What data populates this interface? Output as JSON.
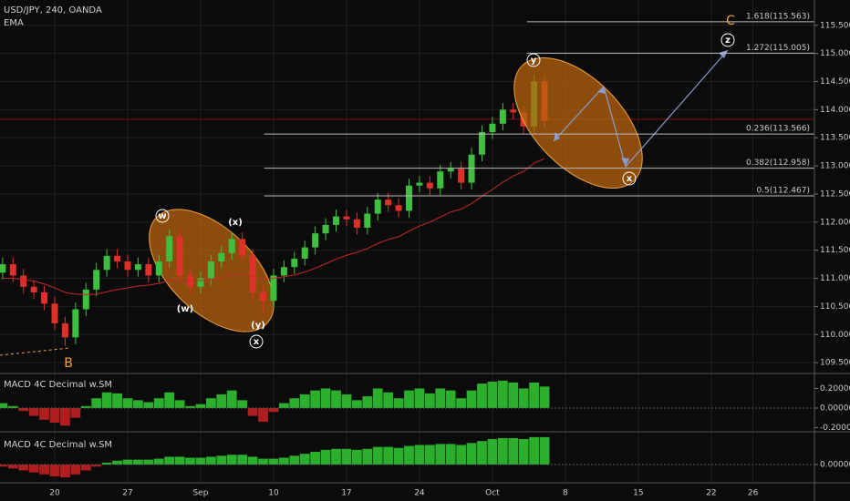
{
  "chart_data": [
    {
      "type": "candlestick",
      "title": "USD/JPY, 240, OANDA",
      "x": [
        -5,
        -4,
        -3,
        -2,
        -1,
        0,
        1,
        2,
        3,
        4,
        5,
        6,
        7,
        8,
        9,
        10,
        11,
        12,
        13,
        14,
        15,
        16,
        17,
        18,
        19,
        20,
        21,
        22,
        23,
        24,
        25,
        26,
        27,
        28,
        29,
        30,
        31,
        32,
        33,
        34,
        35,
        36,
        37,
        38,
        39,
        40,
        41,
        42,
        43,
        44,
        45,
        46,
        47
      ],
      "open": [
        111.1,
        111.25,
        111.05,
        110.85,
        110.75,
        110.55,
        110.2,
        109.95,
        110.45,
        110.8,
        111.15,
        111.4,
        111.3,
        111.15,
        111.25,
        111.05,
        111.3,
        111.75,
        111.05,
        110.85,
        111.0,
        111.3,
        111.45,
        111.7,
        111.4,
        110.75,
        110.6,
        111.05,
        111.2,
        111.35,
        111.55,
        111.8,
        111.95,
        112.1,
        112.05,
        111.9,
        112.15,
        112.4,
        112.3,
        112.2,
        112.65,
        112.7,
        112.6,
        112.9,
        112.95,
        112.7,
        113.2,
        113.6,
        113.75,
        114.0,
        113.95,
        113.7,
        114.5
      ],
      "high": [
        111.37,
        111.37,
        111.17,
        110.97,
        110.87,
        110.67,
        110.32,
        110.57,
        110.92,
        111.27,
        111.52,
        111.52,
        111.42,
        111.37,
        111.37,
        111.42,
        111.87,
        111.87,
        111.17,
        111.12,
        111.42,
        111.57,
        111.82,
        111.82,
        111.52,
        110.87,
        111.17,
        111.32,
        111.47,
        111.67,
        111.92,
        112.07,
        112.22,
        112.22,
        112.17,
        112.27,
        112.52,
        112.52,
        112.42,
        112.77,
        112.82,
        112.82,
        113.02,
        113.07,
        113.07,
        113.32,
        113.72,
        113.87,
        114.12,
        114.12,
        114.07,
        114.62,
        114.62
      ],
      "low": [
        110.98,
        110.93,
        110.73,
        110.63,
        110.43,
        110.08,
        109.8,
        109.83,
        110.33,
        110.68,
        111.03,
        111.18,
        111.03,
        111.03,
        110.93,
        110.93,
        111.18,
        110.93,
        110.73,
        110.73,
        110.88,
        111.18,
        111.33,
        111.28,
        110.63,
        110.38,
        110.48,
        110.93,
        111.08,
        111.23,
        111.43,
        111.68,
        111.83,
        111.93,
        111.78,
        111.78,
        112.03,
        112.18,
        112.08,
        112.08,
        112.53,
        112.48,
        112.48,
        112.78,
        112.58,
        112.58,
        113.08,
        113.48,
        113.63,
        113.83,
        113.58,
        113.58,
        113.68
      ],
      "close": [
        111.25,
        111.05,
        110.85,
        110.75,
        110.55,
        110.2,
        109.95,
        110.45,
        110.8,
        111.15,
        111.4,
        111.3,
        111.15,
        111.25,
        111.05,
        111.3,
        111.75,
        111.05,
        110.85,
        111.0,
        111.3,
        111.45,
        111.7,
        111.4,
        110.75,
        110.6,
        111.05,
        111.2,
        111.35,
        111.55,
        111.8,
        111.95,
        112.1,
        112.05,
        111.9,
        112.15,
        112.4,
        112.3,
        112.2,
        112.65,
        112.7,
        112.6,
        112.9,
        112.95,
        112.7,
        113.2,
        113.6,
        113.75,
        114.0,
        113.95,
        113.7,
        114.5,
        113.8
      ],
      "up_color": "#3fbf3f",
      "down_color": "#e0302a",
      "series": [
        {
          "name": "EMA",
          "color": "#c62828",
          "values": [
            111.0,
            111.0,
            110.98,
            110.95,
            110.9,
            110.83,
            110.75,
            110.72,
            110.71,
            110.72,
            110.76,
            110.8,
            110.83,
            110.86,
            110.88,
            110.91,
            110.96,
            110.97,
            110.96,
            110.96,
            110.98,
            111.01,
            111.06,
            111.08,
            111.04,
            110.99,
            111.0,
            111.03,
            111.06,
            111.11,
            111.18,
            111.26,
            111.34,
            111.41,
            111.46,
            111.53,
            111.62,
            111.69,
            111.74,
            111.84,
            111.93,
            112.0,
            112.09,
            112.18,
            112.23,
            112.33,
            112.46,
            112.58,
            112.71,
            112.82,
            112.9,
            113.05,
            113.13
          ]
        }
      ],
      "last_price": 113.83,
      "fib_levels": [
        {
          "label": "1.618(115.563)",
          "value": 115.563
        },
        {
          "label": "1.272(115.005)",
          "value": 115.005
        },
        {
          "label": "0.236(113.566)",
          "value": 113.566
        },
        {
          "label": "0.382(112.958)",
          "value": 112.958
        },
        {
          "label": "0.5(112.467)",
          "value": 112.467
        }
      ],
      "annotations": [
        "B",
        "C",
        "w",
        "(x)",
        "(w)",
        "(y)",
        "x",
        "y",
        "z",
        "x"
      ],
      "xlim": [
        -5.25,
        72.9
      ],
      "xticks": [
        {
          "value": 0,
          "label": "20"
        },
        {
          "value": 7,
          "label": "27"
        },
        {
          "value": 14,
          "label": "Sep"
        },
        {
          "value": 21,
          "label": "10"
        },
        {
          "value": 28,
          "label": "17"
        },
        {
          "value": 35,
          "label": "24"
        },
        {
          "value": 42,
          "label": "Oct"
        },
        {
          "value": 49,
          "label": "8"
        },
        {
          "value": 56,
          "label": "15"
        },
        {
          "value": 63,
          "label": "22"
        },
        {
          "value": 67,
          "label": "26"
        }
      ],
      "ylim": [
        109.34,
        115.95
      ],
      "yticks": [
        {
          "value": 109.5,
          "label": "109.500"
        },
        {
          "value": 110,
          "label": "110.000"
        },
        {
          "value": 110.5,
          "label": "110.500"
        },
        {
          "value": 111,
          "label": "111.000"
        },
        {
          "value": 111.5,
          "label": "111.500"
        },
        {
          "value": 112,
          "label": "112.000"
        },
        {
          "value": 112.5,
          "label": "112.500"
        },
        {
          "value": 113,
          "label": "113.000"
        },
        {
          "value": 113.5,
          "label": "113.500"
        },
        {
          "value": 114,
          "label": "114.000"
        },
        {
          "value": 114.5,
          "label": "114.500"
        },
        {
          "value": 115,
          "label": "115.000"
        },
        {
          "value": 115.5,
          "label": "115.500"
        }
      ],
      "grid": true
    },
    {
      "type": "histogram",
      "title": "MACD 4C Decimal w.SM",
      "x": [
        -5,
        -4,
        -3,
        -2,
        -1,
        0,
        1,
        2,
        3,
        4,
        5,
        6,
        7,
        8,
        9,
        10,
        11,
        12,
        13,
        14,
        15,
        16,
        17,
        18,
        19,
        20,
        21,
        22,
        23,
        24,
        25,
        26,
        27,
        28,
        29,
        30,
        31,
        32,
        33,
        34,
        35,
        36,
        37,
        38,
        39,
        40,
        41,
        42,
        43,
        44,
        45,
        46,
        47
      ],
      "values": [
        0.05,
        0.02,
        -0.03,
        -0.08,
        -0.12,
        -0.15,
        -0.18,
        -0.1,
        0.02,
        0.1,
        0.16,
        0.15,
        0.1,
        0.08,
        0.06,
        0.1,
        0.16,
        0.08,
        0.02,
        0.04,
        0.1,
        0.14,
        0.18,
        0.08,
        -0.08,
        -0.14,
        -0.04,
        0.05,
        0.1,
        0.14,
        0.18,
        0.2,
        0.18,
        0.14,
        0.08,
        0.12,
        0.2,
        0.16,
        0.1,
        0.18,
        0.2,
        0.15,
        0.2,
        0.18,
        0.1,
        0.18,
        0.25,
        0.27,
        0.28,
        0.26,
        0.2,
        0.26,
        0.22
      ],
      "up_color": "#33cc33",
      "down_color": "#cc2222",
      "ylim": [
        -0.233,
        0.344
      ],
      "yticks": [
        {
          "value": 0.2,
          "label": "0.20000"
        },
        {
          "value": 0,
          "label": "0.00000"
        },
        {
          "value": -0.2,
          "label": "-0.20000"
        }
      ]
    },
    {
      "type": "histogram",
      "title": "MACD 4C Decimal w.SM",
      "x": [
        -5,
        -4,
        -3,
        -2,
        -1,
        0,
        1,
        2,
        3,
        4,
        5,
        6,
        7,
        8,
        9,
        10,
        11,
        12,
        13,
        14,
        15,
        16,
        17,
        18,
        19,
        20,
        21,
        22,
        23,
        24,
        25,
        26,
        27,
        28,
        29,
        30,
        31,
        32,
        33,
        34,
        35,
        36,
        37,
        38,
        39,
        40,
        41,
        42,
        43,
        44,
        45,
        46,
        47
      ],
      "values": [
        -0.02,
        -0.04,
        -0.06,
        -0.08,
        -0.1,
        -0.12,
        -0.13,
        -0.1,
        -0.06,
        -0.02,
        0.02,
        0.04,
        0.05,
        0.05,
        0.05,
        0.06,
        0.08,
        0.08,
        0.07,
        0.07,
        0.08,
        0.09,
        0.1,
        0.1,
        0.08,
        0.06,
        0.06,
        0.07,
        0.09,
        0.11,
        0.13,
        0.15,
        0.16,
        0.16,
        0.15,
        0.16,
        0.18,
        0.18,
        0.17,
        0.19,
        0.2,
        0.2,
        0.21,
        0.21,
        0.2,
        0.22,
        0.24,
        0.26,
        0.27,
        0.27,
        0.26,
        0.28,
        0.28
      ],
      "up_color": "#33cc33",
      "down_color": "#cc2222",
      "ylim": [
        -0.167,
        0.316
      ],
      "yticks": [
        {
          "value": 0,
          "label": "0.00000"
        }
      ]
    }
  ]
}
